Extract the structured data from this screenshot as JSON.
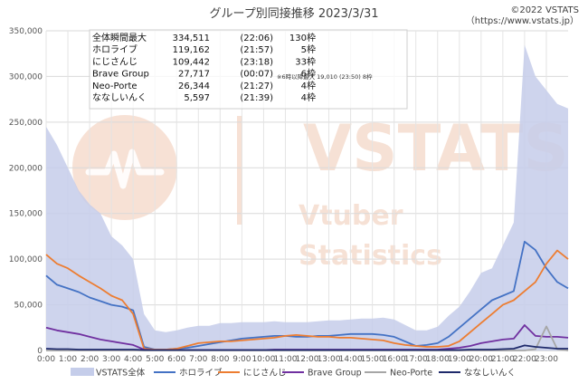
{
  "chart_data": {
    "type": "area",
    "title": "グループ別同接推移 2023/3/31",
    "copyright_line1": "©2022 VSTATS",
    "copyright_line2": "（https://www.vstats.jp）",
    "watermark": {
      "brand": "VSTATS",
      "line1": "Vtuber",
      "line2": "Statistics"
    },
    "xlabel": "",
    "ylabel": "",
    "ylim": [
      0,
      350000
    ],
    "yticks": [
      0,
      50000,
      100000,
      150000,
      200000,
      250000,
      300000,
      350000
    ],
    "ytick_labels": [
      "0",
      "50,000",
      "100,000",
      "150,000",
      "200,000",
      "250,000",
      "300,000",
      "350,000"
    ],
    "xlim": [
      0,
      24
    ],
    "x_hours": [
      0,
      0.5,
      1,
      1.5,
      2,
      2.5,
      3,
      3.5,
      4,
      4.5,
      5,
      5.5,
      6,
      6.5,
      7,
      7.5,
      8,
      8.5,
      9,
      9.5,
      10,
      10.5,
      11,
      11.5,
      12,
      12.5,
      13,
      13.5,
      14,
      14.5,
      15,
      15.5,
      16,
      16.5,
      17,
      17.5,
      18,
      18.5,
      19,
      19.5,
      20,
      20.5,
      21,
      21.5,
      22,
      22.5,
      23,
      23.5,
      24
    ],
    "xtick_labels": [
      "0:00",
      "1:00",
      "2:00",
      "3:00",
      "4:00",
      "5:00",
      "6:00",
      "7:00",
      "8:00",
      "9:00",
      "10:00",
      "11:00",
      "12:00",
      "13:00",
      "14:00",
      "15:00",
      "16:00",
      "17:00",
      "18:00",
      "19:00",
      "20:00",
      "21:00",
      "22:00",
      "23:00"
    ],
    "grid": true,
    "legend_position": "bottom",
    "series": [
      {
        "name": "VSTATS全体",
        "color": "#c5cdea",
        "kind": "area",
        "values": [
          245000,
          225000,
          200000,
          175000,
          160000,
          150000,
          125000,
          115000,
          100000,
          40000,
          22000,
          20000,
          22000,
          25000,
          27000,
          27000,
          30000,
          30000,
          31000,
          31000,
          31000,
          32000,
          31000,
          31000,
          31000,
          32000,
          33000,
          33000,
          34000,
          35000,
          35000,
          36000,
          34000,
          28000,
          22000,
          22000,
          26000,
          38000,
          48000,
          65000,
          85000,
          90000,
          115000,
          140000,
          334511,
          300000,
          285000,
          270000,
          265000
        ]
      },
      {
        "name": "ホロライブ",
        "color": "#4472c4",
        "kind": "line",
        "values": [
          82000,
          72000,
          68000,
          64000,
          58000,
          54000,
          50000,
          48000,
          44000,
          4000,
          1000,
          1000,
          2000,
          3000,
          5000,
          7000,
          9000,
          11000,
          13000,
          14000,
          15000,
          16000,
          16000,
          15000,
          15000,
          16000,
          16000,
          17000,
          18000,
          18000,
          18000,
          17000,
          15000,
          10000,
          5000,
          6000,
          8000,
          15000,
          25000,
          35000,
          45000,
          55000,
          60000,
          65000,
          119162,
          110000,
          90000,
          75000,
          68000
        ]
      },
      {
        "name": "にじさんじ",
        "color": "#ed7d31",
        "kind": "line",
        "values": [
          105000,
          95000,
          90000,
          82000,
          75000,
          68000,
          60000,
          55000,
          40000,
          2000,
          1000,
          1000,
          2000,
          5000,
          8000,
          9000,
          10000,
          10000,
          11000,
          12000,
          13000,
          14000,
          16000,
          17000,
          16000,
          15000,
          15000,
          14000,
          14000,
          13000,
          12000,
          11000,
          8000,
          6000,
          5000,
          4000,
          4000,
          5000,
          10000,
          20000,
          30000,
          40000,
          50000,
          55000,
          65000,
          75000,
          95000,
          109442,
          100000
        ]
      },
      {
        "name": "Brave Group",
        "color": "#7030a0",
        "kind": "line",
        "values": [
          25000,
          22000,
          20000,
          18000,
          15000,
          12000,
          10000,
          8000,
          6000,
          1000,
          500,
          500,
          500,
          500,
          500,
          500,
          500,
          500,
          500,
          500,
          500,
          1000,
          1000,
          1000,
          1000,
          1000,
          1000,
          1000,
          1000,
          1000,
          1000,
          1000,
          1000,
          1000,
          1000,
          1000,
          1000,
          2000,
          3000,
          5000,
          8000,
          10000,
          12000,
          13000,
          27717,
          16000,
          15000,
          15000,
          14000
        ]
      },
      {
        "name": "Neo-Porte",
        "color": "#a6a6a6",
        "kind": "line",
        "values": [
          0,
          0,
          0,
          0,
          0,
          0,
          0,
          0,
          0,
          0,
          0,
          0,
          0,
          0,
          0,
          0,
          0,
          0,
          0,
          0,
          0,
          0,
          0,
          0,
          0,
          0,
          0,
          0,
          0,
          0,
          0,
          0,
          0,
          0,
          0,
          0,
          0,
          0,
          0,
          0,
          0,
          0,
          0,
          0,
          0,
          1500,
          26344,
          1500,
          0
        ]
      },
      {
        "name": "ななしいんく",
        "color": "#1f2a6b",
        "kind": "line",
        "values": [
          2000,
          1500,
          1500,
          1000,
          1000,
          1000,
          1000,
          1000,
          1000,
          500,
          500,
          500,
          500,
          500,
          500,
          500,
          500,
          500,
          500,
          500,
          500,
          500,
          500,
          500,
          500,
          500,
          500,
          500,
          500,
          500,
          500,
          500,
          500,
          500,
          500,
          500,
          500,
          500,
          500,
          1000,
          1000,
          1000,
          1500,
          2000,
          5597,
          4000,
          3000,
          2000,
          2000
        ]
      }
    ],
    "stats_table": [
      {
        "label": "全体瞬間最大",
        "value": "334,511",
        "time": "(22:06)",
        "frames": "130枠"
      },
      {
        "label": "ホロライブ",
        "value": "119,162",
        "time": "(21:57)",
        "frames": "5枠"
      },
      {
        "label": "にじさんじ",
        "value": "109,442",
        "time": "(23:18)",
        "frames": "33枠"
      },
      {
        "label": "Brave Group",
        "value": "27,717",
        "time": "(00:07)",
        "frames": "6枠"
      },
      {
        "label": "Neo-Porte",
        "value": "26,344",
        "time": "(21:27)",
        "frames": "4枠"
      },
      {
        "label": "ななしいんく",
        "value": "5,597",
        "time": "(21:39)",
        "frames": "4枠"
      }
    ],
    "stats_note": "※6時以降最大 19,010 (23:50) 8枠"
  }
}
